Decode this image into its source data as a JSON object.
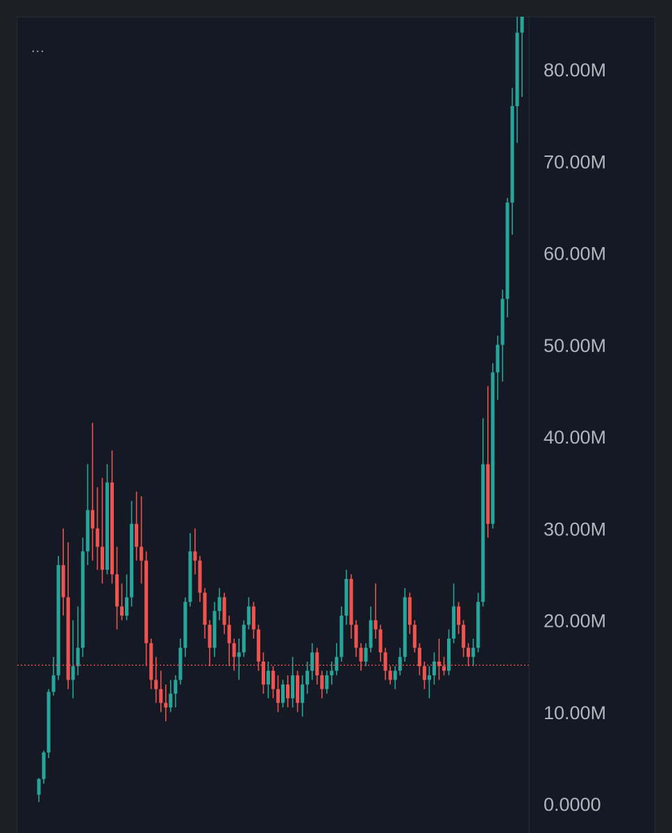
{
  "toolbar": {
    "menu_label": "..."
  },
  "colors": {
    "background": "#151924",
    "up": "#26a69a",
    "down": "#ef5350",
    "axis_text": "#b2b5be",
    "axis_line": "#2a2e39",
    "price_line": "#ef5350"
  },
  "chart_data": {
    "type": "candlestick",
    "title": "",
    "xlabel": "",
    "ylabel": "",
    "ylim": [
      0,
      85
    ],
    "y_unit": "M",
    "y_ticks": [
      {
        "value": 0,
        "label": "0.0000"
      },
      {
        "value": 10,
        "label": "10.00M"
      },
      {
        "value": 20,
        "label": "20.00M"
      },
      {
        "value": 30,
        "label": "30.00M"
      },
      {
        "value": 40,
        "label": "40.00M"
      },
      {
        "value": 50,
        "label": "50.00M"
      },
      {
        "value": 60,
        "label": "60.00M"
      },
      {
        "value": 70,
        "label": "70.00M"
      },
      {
        "value": 80,
        "label": "80.00M"
      }
    ],
    "current_price_line": 15.1,
    "grid": false,
    "legend": "none",
    "candles": [
      [
        1.0,
        2.8,
        0.2,
        2.7
      ],
      [
        2.7,
        5.8,
        2.2,
        5.6
      ],
      [
        5.6,
        12.5,
        5.0,
        12.2
      ],
      [
        12.2,
        16.0,
        11.8,
        14.0
      ],
      [
        14.0,
        27.0,
        13.5,
        26.0
      ],
      [
        26.0,
        30.0,
        20.5,
        22.5
      ],
      [
        22.5,
        28.5,
        12.5,
        13.5
      ],
      [
        13.5,
        20.0,
        11.5,
        15.0
      ],
      [
        15.0,
        21.5,
        14.0,
        17.0
      ],
      [
        17.0,
        29.0,
        16.0,
        27.5
      ],
      [
        27.5,
        37.0,
        26.0,
        32.0
      ],
      [
        32.0,
        41.5,
        26.5,
        30.0
      ],
      [
        30.0,
        34.5,
        25.5,
        28.0
      ],
      [
        28.0,
        35.5,
        24.0,
        25.5
      ],
      [
        25.5,
        37.0,
        25.0,
        35.0
      ],
      [
        35.0,
        38.5,
        24.0,
        25.0
      ],
      [
        25.0,
        28.0,
        19.0,
        21.5
      ],
      [
        21.5,
        24.0,
        20.0,
        20.5
      ],
      [
        20.5,
        25.0,
        20.0,
        22.5
      ],
      [
        22.5,
        33.0,
        21.5,
        30.5
      ],
      [
        30.5,
        34.0,
        26.5,
        28.0
      ],
      [
        28.0,
        33.5,
        24.0,
        26.5
      ],
      [
        26.5,
        27.5,
        15.0,
        17.5
      ],
      [
        17.5,
        18.0,
        12.5,
        13.5
      ],
      [
        13.5,
        16.0,
        11.0,
        12.5
      ],
      [
        12.5,
        14.5,
        10.0,
        11.0
      ],
      [
        11.0,
        13.0,
        9.0,
        10.5
      ],
      [
        10.5,
        13.5,
        10.0,
        12.0
      ],
      [
        12.0,
        14.0,
        10.5,
        13.5
      ],
      [
        13.5,
        18.0,
        13.0,
        17.0
      ],
      [
        17.0,
        22.5,
        16.0,
        22.0
      ],
      [
        22.0,
        29.5,
        21.5,
        27.5
      ],
      [
        27.5,
        30.0,
        25.0,
        26.5
      ],
      [
        26.5,
        27.0,
        22.0,
        23.0
      ],
      [
        23.0,
        23.5,
        18.0,
        19.5
      ],
      [
        19.5,
        20.0,
        15.0,
        17.0
      ],
      [
        17.0,
        22.0,
        16.0,
        21.0
      ],
      [
        21.0,
        23.5,
        20.0,
        22.5
      ],
      [
        22.5,
        23.0,
        18.5,
        19.5
      ],
      [
        19.5,
        20.5,
        15.0,
        17.5
      ],
      [
        17.5,
        18.0,
        14.5,
        16.0
      ],
      [
        16.0,
        18.0,
        13.5,
        16.5
      ],
      [
        16.5,
        20.0,
        16.0,
        19.5
      ],
      [
        19.5,
        22.5,
        19.0,
        21.5
      ],
      [
        21.5,
        22.0,
        18.0,
        19.0
      ],
      [
        19.0,
        19.5,
        14.5,
        15.5
      ],
      [
        15.5,
        16.5,
        12.0,
        13.0
      ],
      [
        13.0,
        15.5,
        11.5,
        14.5
      ],
      [
        14.5,
        15.0,
        11.5,
        12.5
      ],
      [
        12.5,
        14.0,
        10.0,
        11.0
      ],
      [
        11.0,
        13.5,
        10.5,
        13.0
      ],
      [
        13.0,
        14.0,
        10.5,
        11.5
      ],
      [
        11.5,
        16.0,
        10.5,
        14.0
      ],
      [
        14.0,
        14.5,
        10.0,
        11.0
      ],
      [
        11.0,
        14.0,
        9.5,
        13.0
      ],
      [
        13.0,
        15.5,
        12.0,
        14.5
      ],
      [
        14.5,
        17.5,
        13.5,
        16.5
      ],
      [
        16.5,
        17.0,
        13.0,
        14.0
      ],
      [
        14.0,
        14.5,
        11.5,
        12.5
      ],
      [
        12.5,
        14.5,
        12.0,
        14.0
      ],
      [
        14.0,
        15.5,
        13.0,
        14.5
      ],
      [
        14.5,
        17.5,
        14.0,
        16.0
      ],
      [
        16.0,
        21.5,
        15.5,
        20.5
      ],
      [
        20.5,
        25.5,
        19.5,
        24.5
      ],
      [
        24.5,
        25.0,
        18.0,
        19.5
      ],
      [
        19.5,
        20.0,
        16.0,
        17.0
      ],
      [
        17.0,
        17.5,
        14.5,
        15.5
      ],
      [
        15.5,
        17.5,
        15.0,
        17.0
      ],
      [
        17.0,
        21.5,
        16.5,
        20.0
      ],
      [
        20.0,
        24.0,
        18.0,
        19.0
      ],
      [
        19.0,
        19.5,
        15.5,
        16.5
      ],
      [
        16.5,
        17.0,
        13.5,
        14.5
      ],
      [
        14.5,
        15.0,
        13.0,
        13.5
      ],
      [
        13.5,
        15.0,
        12.5,
        14.5
      ],
      [
        14.5,
        17.0,
        14.0,
        16.0
      ],
      [
        16.0,
        23.5,
        15.5,
        22.5
      ],
      [
        22.5,
        23.0,
        18.5,
        19.5
      ],
      [
        19.5,
        20.0,
        16.5,
        17.0
      ],
      [
        17.0,
        17.5,
        14.0,
        15.0
      ],
      [
        15.0,
        15.5,
        12.5,
        13.5
      ],
      [
        13.5,
        15.0,
        11.5,
        14.0
      ],
      [
        14.0,
        16.5,
        13.0,
        15.5
      ],
      [
        15.5,
        18.0,
        13.5,
        15.0
      ],
      [
        15.0,
        16.0,
        14.0,
        14.5
      ],
      [
        14.5,
        19.0,
        14.0,
        18.0
      ],
      [
        18.0,
        24.0,
        17.5,
        21.5
      ],
      [
        21.5,
        22.0,
        18.5,
        19.5
      ],
      [
        19.5,
        20.0,
        16.0,
        17.0
      ],
      [
        17.0,
        17.5,
        15.0,
        16.0
      ],
      [
        16.0,
        18.0,
        15.0,
        17.0
      ],
      [
        17.0,
        23.0,
        16.5,
        22.0
      ],
      [
        22.0,
        42.0,
        21.5,
        37.0
      ],
      [
        37.0,
        45.5,
        29.0,
        30.5
      ],
      [
        30.5,
        48.0,
        30.0,
        47.0
      ],
      [
        47.0,
        51.0,
        44.0,
        50.0
      ],
      [
        50.0,
        56.0,
        46.0,
        55.0
      ],
      [
        55.0,
        66.0,
        53.0,
        65.5
      ],
      [
        65.5,
        78.0,
        62.0,
        76.0
      ],
      [
        76.0,
        87.0,
        72.0,
        84.0
      ],
      [
        84.0,
        88.0,
        77.0,
        86.0
      ]
    ]
  }
}
